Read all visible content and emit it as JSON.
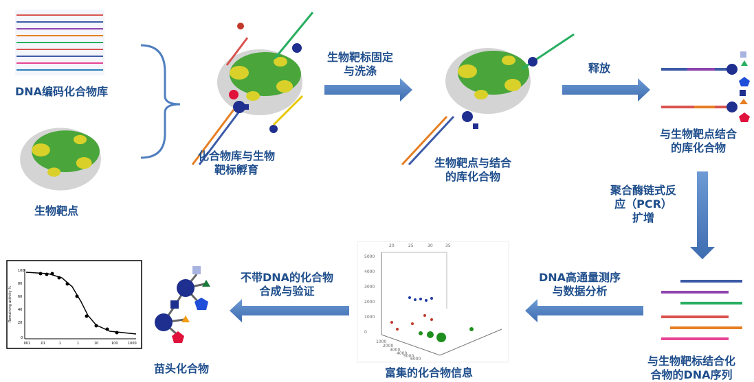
{
  "labels": {
    "library": "DNA编码化合物库",
    "target": "生物靶点",
    "incubate_l1": "化合物库与生物",
    "incubate_l2": "靶标孵育",
    "fix_wash_l1": "生物靶标固定",
    "fix_wash_l2": "与洗涤",
    "bound_l1": "生物靶点与结合",
    "bound_l2": "的库化合物",
    "release": "释放",
    "released_l1": "与生物靶点结合",
    "released_l2": "的库化合物",
    "pcr_l1": "聚合酶链式反",
    "pcr_l2": "应（PCR）",
    "pcr_l3": "扩增",
    "seq_out_l1": "与生物靶标结合化",
    "seq_out_l2": "合物的DNA序列",
    "ngs_l1": "DNA高通量测序",
    "ngs_l2": "与数据分析",
    "enriched": "富集的化合物信息",
    "synth_l1": "不带DNA的化合物",
    "synth_l2": "合成与验证",
    "hit": "苗头化合物"
  },
  "dose_plot": {
    "ylabel": "Remaining activity %",
    "yticks": [
      "100",
      "80",
      "60",
      "40",
      "20",
      "0"
    ],
    "xticks": [
      ".001",
      ".01",
      ".1",
      "1",
      "10",
      "100",
      "1000"
    ]
  },
  "scatter3d": {
    "top_ticks": [
      "20",
      "25",
      "30",
      "35"
    ],
    "left_ticks": [
      "5000",
      "4000",
      "3000",
      "2000",
      "1000",
      "0"
    ],
    "bottom_ticks": [
      "1000",
      "2000",
      "3000",
      "4000",
      "5000",
      "6000"
    ]
  },
  "colors": {
    "arrow": "#4f7fbf",
    "label": "#1f4e8c",
    "protein_green": "#4aa63b",
    "protein_yellow": "#d9d12a"
  }
}
